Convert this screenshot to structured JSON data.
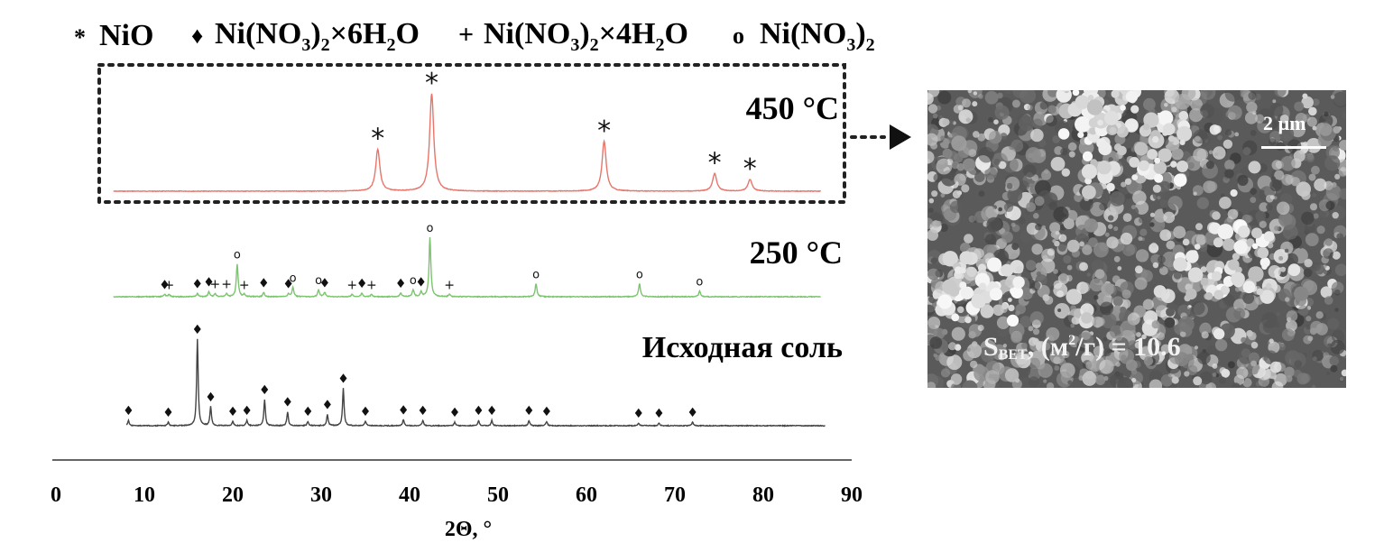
{
  "legend": {
    "items": [
      {
        "marker": "*",
        "label": "NiO"
      },
      {
        "marker": "♦",
        "label": "Ni(NO3)2×6H2O"
      },
      {
        "marker": "+",
        "label": "Ni(NO3)2×4H2O"
      },
      {
        "marker": "o",
        "label": "Ni(NO3)2"
      }
    ]
  },
  "colors": {
    "t450": "#e8756b",
    "t250": "#7cc46f",
    "salt": "#444444",
    "sem_bg": "#5a5a5a"
  },
  "sem": {
    "scale_label": "2 µm",
    "bet_main": "S",
    "bet_sub": "BET",
    "bet_rest": ", (м",
    "bet_sup": "2",
    "bet_end": "/г) = 10.6"
  },
  "chart_data": {
    "type": "line",
    "xlabel": "2Θ, °",
    "ylabel": "",
    "xlim": [
      0,
      90
    ],
    "xticks": [
      0,
      10,
      20,
      30,
      40,
      50,
      60,
      70,
      80,
      90
    ],
    "grid": false,
    "series": [
      {
        "name": "450 °C",
        "x_range": [
          6.5,
          86.5
        ],
        "peaks": [
          {
            "x": 36.4,
            "h": 0.43,
            "marker": "*"
          },
          {
            "x": 42.5,
            "h": 1.0,
            "marker": "*"
          },
          {
            "x": 62.0,
            "h": 0.51,
            "marker": "*"
          },
          {
            "x": 74.5,
            "h": 0.18,
            "marker": "*"
          },
          {
            "x": 78.5,
            "h": 0.12,
            "marker": "*"
          }
        ]
      },
      {
        "name": "250 °C",
        "x_range": [
          6.5,
          86.5
        ],
        "peaks": [
          {
            "x": 12.3,
            "h": 0.04,
            "marker": "♦"
          },
          {
            "x": 12.8,
            "h": 0.04,
            "marker": "+"
          },
          {
            "x": 16.0,
            "h": 0.05,
            "marker": "♦"
          },
          {
            "x": 17.3,
            "h": 0.08,
            "marker": "♦"
          },
          {
            "x": 18.0,
            "h": 0.05,
            "marker": "+"
          },
          {
            "x": 19.3,
            "h": 0.05,
            "marker": "+"
          },
          {
            "x": 20.5,
            "h": 0.55,
            "marker": "o"
          },
          {
            "x": 21.3,
            "h": 0.04,
            "marker": "+"
          },
          {
            "x": 23.5,
            "h": 0.07,
            "marker": "♦"
          },
          {
            "x": 26.3,
            "h": 0.05,
            "marker": "♦"
          },
          {
            "x": 26.8,
            "h": 0.16,
            "marker": "o"
          },
          {
            "x": 29.7,
            "h": 0.12,
            "marker": "o"
          },
          {
            "x": 30.4,
            "h": 0.07,
            "marker": "♦"
          },
          {
            "x": 33.5,
            "h": 0.04,
            "marker": "+"
          },
          {
            "x": 34.6,
            "h": 0.06,
            "marker": "♦"
          },
          {
            "x": 35.7,
            "h": 0.04,
            "marker": "+"
          },
          {
            "x": 39.0,
            "h": 0.06,
            "marker": "♦"
          },
          {
            "x": 40.4,
            "h": 0.12,
            "marker": "o"
          },
          {
            "x": 41.3,
            "h": 0.08,
            "marker": "♦"
          },
          {
            "x": 42.3,
            "h": 1.0,
            "marker": "o"
          },
          {
            "x": 44.5,
            "h": 0.04,
            "marker": "+"
          },
          {
            "x": 54.3,
            "h": 0.22,
            "marker": "o"
          },
          {
            "x": 66.0,
            "h": 0.22,
            "marker": "o"
          },
          {
            "x": 72.8,
            "h": 0.1,
            "marker": "o"
          }
        ]
      },
      {
        "name": "Исходная соль",
        "x_range": [
          8.0,
          87.0
        ],
        "peaks": [
          {
            "x": 8.2,
            "h": 0.06,
            "marker": "♦"
          },
          {
            "x": 12.7,
            "h": 0.04,
            "marker": "♦"
          },
          {
            "x": 16.0,
            "h": 1.0,
            "marker": "♦"
          },
          {
            "x": 17.5,
            "h": 0.22,
            "marker": "♦"
          },
          {
            "x": 20.0,
            "h": 0.05,
            "marker": "♦"
          },
          {
            "x": 21.6,
            "h": 0.06,
            "marker": "♦"
          },
          {
            "x": 23.6,
            "h": 0.3,
            "marker": "♦"
          },
          {
            "x": 26.2,
            "h": 0.16,
            "marker": "♦"
          },
          {
            "x": 28.5,
            "h": 0.05,
            "marker": "♦"
          },
          {
            "x": 30.7,
            "h": 0.13,
            "marker": "♦"
          },
          {
            "x": 32.5,
            "h": 0.43,
            "marker": "♦"
          },
          {
            "x": 35.0,
            "h": 0.05,
            "marker": "♦"
          },
          {
            "x": 39.3,
            "h": 0.07,
            "marker": "♦"
          },
          {
            "x": 41.5,
            "h": 0.06,
            "marker": "♦"
          },
          {
            "x": 45.1,
            "h": 0.04,
            "marker": "♦"
          },
          {
            "x": 47.8,
            "h": 0.06,
            "marker": "♦"
          },
          {
            "x": 49.3,
            "h": 0.06,
            "marker": "♦"
          },
          {
            "x": 53.5,
            "h": 0.06,
            "marker": "♦"
          },
          {
            "x": 55.5,
            "h": 0.05,
            "marker": "♦"
          },
          {
            "x": 65.9,
            "h": 0.03,
            "marker": "♦"
          },
          {
            "x": 68.2,
            "h": 0.03,
            "marker": "♦"
          },
          {
            "x": 72.0,
            "h": 0.04,
            "marker": "♦"
          }
        ]
      }
    ]
  }
}
